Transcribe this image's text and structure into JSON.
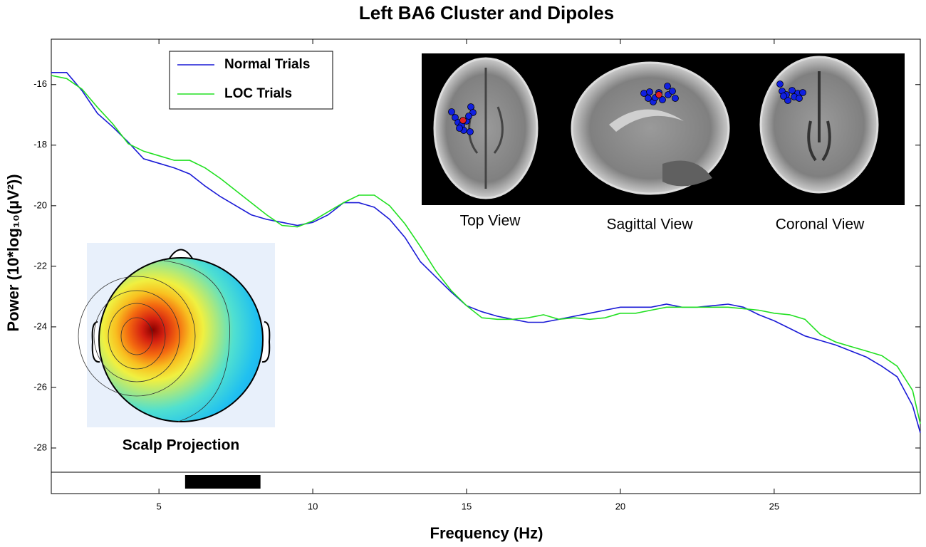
{
  "chart_data": {
    "type": "line",
    "title": "Left BA6 Cluster and Dipoles",
    "xlabel": "Frequency (Hz)",
    "ylabel": "Power (10*log₁₀(µV²))",
    "x": [
      1.5,
      2,
      2.5,
      3,
      3.5,
      4,
      4.5,
      5,
      5.5,
      6,
      6.5,
      7,
      7.5,
      8,
      8.5,
      9,
      9.5,
      10,
      10.5,
      11,
      11.5,
      12,
      12.5,
      13,
      13.5,
      14,
      14.5,
      15,
      15.5,
      16,
      16.5,
      17,
      17.5,
      18,
      18.5,
      19,
      19.5,
      20,
      20.5,
      21,
      21.5,
      22,
      22.5,
      23,
      23.5,
      24,
      24.5,
      25,
      25.5,
      26,
      26.5,
      27,
      27.5,
      28,
      28.5,
      29,
      29.5,
      29.75
    ],
    "series": [
      {
        "name": "Normal Trials",
        "color": "#1a1ad6",
        "values": [
          -15.6,
          -15.6,
          -16.2,
          -16.95,
          -17.4,
          -17.9,
          -18.45,
          -18.6,
          -18.75,
          -18.95,
          -19.35,
          -19.7,
          -20.0,
          -20.3,
          -20.45,
          -20.55,
          -20.65,
          -20.55,
          -20.3,
          -19.9,
          -19.9,
          -20.05,
          -20.45,
          -21.05,
          -21.85,
          -22.35,
          -22.85,
          -23.3,
          -23.5,
          -23.65,
          -23.75,
          -23.85,
          -23.85,
          -23.75,
          -23.65,
          -23.55,
          -23.45,
          -23.35,
          -23.35,
          -23.35,
          -23.25,
          -23.35,
          -23.35,
          -23.3,
          -23.25,
          -23.35,
          -23.6,
          -23.8,
          -24.05,
          -24.3,
          -24.45,
          -24.6,
          -24.8,
          -25.0,
          -25.3,
          -25.65,
          -26.6,
          -27.5
        ]
      },
      {
        "name": "LOC Trials",
        "color": "#22e022",
        "values": [
          -15.7,
          -15.8,
          -16.15,
          -16.75,
          -17.3,
          -17.95,
          -18.2,
          -18.35,
          -18.5,
          -18.5,
          -18.75,
          -19.1,
          -19.5,
          -19.9,
          -20.3,
          -20.65,
          -20.7,
          -20.5,
          -20.2,
          -19.9,
          -19.65,
          -19.65,
          -20.0,
          -20.6,
          -21.35,
          -22.15,
          -22.8,
          -23.3,
          -23.7,
          -23.75,
          -23.75,
          -23.7,
          -23.6,
          -23.75,
          -23.7,
          -23.75,
          -23.7,
          -23.55,
          -23.55,
          -23.45,
          -23.35,
          -23.35,
          -23.35,
          -23.35,
          -23.35,
          -23.4,
          -23.45,
          -23.55,
          -23.6,
          -23.75,
          -24.25,
          -24.5,
          -24.65,
          -24.8,
          -24.95,
          -25.3,
          -26.1,
          -27.2
        ]
      }
    ],
    "xlim": [
      1.5,
      29.75
    ],
    "ylim": [
      -28.8,
      -14.5
    ],
    "xticks": [
      5,
      10,
      15,
      20,
      25
    ],
    "yticks": [
      -28,
      -26,
      -24,
      -22,
      -20,
      -18,
      -16
    ],
    "grid": false,
    "legend": "upper left",
    "highlight_x": [
      5.85,
      8.3
    ],
    "annotations": [
      "Top View",
      "Sagittal View",
      "Coronal View",
      "Scalp Projection"
    ]
  }
}
